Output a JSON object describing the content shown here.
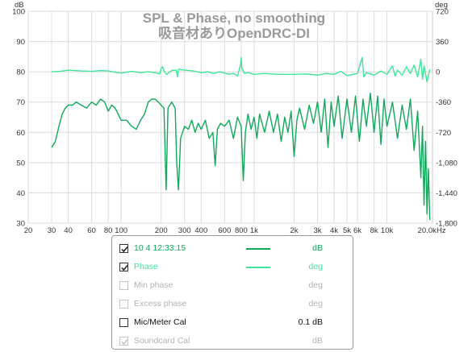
{
  "chart_data": {
    "type": "line",
    "title": "SPL & Phase, no smoothing",
    "subtitle": "吸音材ありOpenDRC-DI",
    "x_scale": "log",
    "xlim": [
      20,
      22000
    ],
    "x_ticks": [
      20,
      30,
      40,
      60,
      80,
      100,
      200,
      300,
      400,
      600,
      800,
      1000,
      2000,
      3000,
      4000,
      5000,
      6000,
      8000,
      10000,
      20000
    ],
    "x_tick_labels": [
      "20",
      "30",
      "40",
      "60",
      "80",
      "100",
      "200",
      "300",
      "400",
      "600",
      "800",
      "1k",
      "2k",
      "3k",
      "4k",
      "5k",
      "6k",
      "8k",
      "10k",
      "20.0k"
    ],
    "xlabel": "Hz",
    "ylabel_left": "dB",
    "ylim_left": [
      30,
      100
    ],
    "y_ticks_left": [
      30,
      40,
      50,
      60,
      70,
      80,
      90,
      100
    ],
    "ylabel_right": "deg",
    "ylim_right": [
      -1800,
      720
    ],
    "y_ticks_right": [
      720,
      360,
      0,
      -360,
      -720,
      -1080,
      -1440,
      -1800
    ],
    "y_tick_labels_right": [
      "720",
      "360",
      "0",
      "-360",
      "-720",
      "-1,080",
      "-1,440",
      "-1,800"
    ],
    "grid": true,
    "series": [
      {
        "name": "10 4 12:33:15",
        "axis": "left",
        "color": "#10a85a",
        "points": [
          [
            30,
            55
          ],
          [
            32,
            57
          ],
          [
            34,
            62
          ],
          [
            36,
            66
          ],
          [
            38,
            68
          ],
          [
            40,
            69
          ],
          [
            43,
            69
          ],
          [
            46,
            70
          ],
          [
            50,
            69
          ],
          [
            55,
            68
          ],
          [
            60,
            70
          ],
          [
            65,
            69
          ],
          [
            70,
            71
          ],
          [
            75,
            70
          ],
          [
            80,
            67
          ],
          [
            85,
            69
          ],
          [
            90,
            68
          ],
          [
            95,
            66
          ],
          [
            100,
            64
          ],
          [
            110,
            64
          ],
          [
            120,
            62
          ],
          [
            130,
            61
          ],
          [
            140,
            64
          ],
          [
            150,
            66
          ],
          [
            160,
            70
          ],
          [
            170,
            71
          ],
          [
            180,
            71
          ],
          [
            190,
            70
          ],
          [
            200,
            69
          ],
          [
            210,
            68
          ],
          [
            218,
            41
          ],
          [
            225,
            68
          ],
          [
            240,
            70
          ],
          [
            255,
            68
          ],
          [
            262,
            50
          ],
          [
            270,
            41
          ],
          [
            280,
            58
          ],
          [
            300,
            62
          ],
          [
            320,
            61
          ],
          [
            340,
            64
          ],
          [
            360,
            60
          ],
          [
            380,
            63
          ],
          [
            400,
            61
          ],
          [
            430,
            64
          ],
          [
            460,
            58
          ],
          [
            490,
            60
          ],
          [
            510,
            49
          ],
          [
            530,
            61
          ],
          [
            560,
            63
          ],
          [
            600,
            62
          ],
          [
            650,
            64
          ],
          [
            700,
            58
          ],
          [
            750,
            65
          ],
          [
            800,
            62
          ],
          [
            830,
            44
          ],
          [
            860,
            60
          ],
          [
            900,
            66
          ],
          [
            950,
            61
          ],
          [
            1000,
            65
          ],
          [
            1050,
            58
          ],
          [
            1100,
            66
          ],
          [
            1200,
            60
          ],
          [
            1300,
            67
          ],
          [
            1400,
            60
          ],
          [
            1500,
            66
          ],
          [
            1600,
            57
          ],
          [
            1700,
            65
          ],
          [
            1800,
            60
          ],
          [
            1900,
            67
          ],
          [
            2000,
            52
          ],
          [
            2100,
            64
          ],
          [
            2200,
            68
          ],
          [
            2400,
            61
          ],
          [
            2600,
            69
          ],
          [
            2800,
            63
          ],
          [
            3000,
            70
          ],
          [
            3200,
            60
          ],
          [
            3400,
            71
          ],
          [
            3600,
            55
          ],
          [
            3800,
            70
          ],
          [
            4000,
            62
          ],
          [
            4300,
            72
          ],
          [
            4600,
            58
          ],
          [
            5000,
            71
          ],
          [
            5400,
            60
          ],
          [
            5800,
            72
          ],
          [
            6200,
            57
          ],
          [
            6600,
            71
          ],
          [
            7000,
            62
          ],
          [
            7500,
            73
          ],
          [
            8000,
            60
          ],
          [
            8500,
            72
          ],
          [
            9000,
            56
          ],
          [
            9500,
            71
          ],
          [
            10000,
            62
          ],
          [
            11000,
            70
          ],
          [
            12000,
            58
          ],
          [
            13000,
            69
          ],
          [
            14000,
            61
          ],
          [
            15000,
            71
          ],
          [
            16000,
            54
          ],
          [
            17000,
            67
          ],
          [
            18000,
            45
          ],
          [
            18500,
            62
          ],
          [
            19000,
            36
          ],
          [
            19500,
            57
          ],
          [
            20000,
            33
          ],
          [
            20500,
            48
          ],
          [
            21000,
            31
          ]
        ]
      },
      {
        "name": "Phase",
        "axis": "right",
        "color": "#3ee59a",
        "points": [
          [
            30,
            0
          ],
          [
            35,
            5
          ],
          [
            40,
            20
          ],
          [
            50,
            10
          ],
          [
            60,
            5
          ],
          [
            70,
            15
          ],
          [
            80,
            10
          ],
          [
            90,
            -5
          ],
          [
            100,
            -15
          ],
          [
            120,
            5
          ],
          [
            140,
            -10
          ],
          [
            160,
            0
          ],
          [
            180,
            -10
          ],
          [
            195,
            -25
          ],
          [
            200,
            40
          ],
          [
            205,
            60
          ],
          [
            210,
            10
          ],
          [
            220,
            -30
          ],
          [
            240,
            15
          ],
          [
            260,
            20
          ],
          [
            265,
            -60
          ],
          [
            270,
            30
          ],
          [
            300,
            20
          ],
          [
            350,
            10
          ],
          [
            400,
            -10
          ],
          [
            450,
            0
          ],
          [
            500,
            -20
          ],
          [
            550,
            0
          ],
          [
            600,
            -15
          ],
          [
            650,
            -30
          ],
          [
            700,
            -20
          ],
          [
            750,
            -50
          ],
          [
            790,
            80
          ],
          [
            800,
            170
          ],
          [
            810,
            40
          ],
          [
            850,
            -20
          ],
          [
            900,
            -10
          ],
          [
            1000,
            -30
          ],
          [
            1200,
            -20
          ],
          [
            1500,
            -30
          ],
          [
            2000,
            -30
          ],
          [
            2500,
            -25
          ],
          [
            3000,
            -40
          ],
          [
            3500,
            -20
          ],
          [
            4000,
            -30
          ],
          [
            4500,
            5
          ],
          [
            5000,
            -45
          ],
          [
            6000,
            -20
          ],
          [
            6500,
            170
          ],
          [
            6700,
            -60
          ],
          [
            7000,
            -10
          ],
          [
            8000,
            -40
          ],
          [
            9000,
            10
          ],
          [
            10000,
            -30
          ],
          [
            11000,
            70
          ],
          [
            11500,
            -50
          ],
          [
            12000,
            20
          ],
          [
            13000,
            -40
          ],
          [
            14000,
            60
          ],
          [
            15000,
            -20
          ],
          [
            16000,
            80
          ],
          [
            17000,
            -60
          ],
          [
            18000,
            150
          ],
          [
            18500,
            -90
          ],
          [
            19000,
            70
          ],
          [
            20000,
            -120
          ],
          [
            21000,
            30
          ]
        ]
      }
    ]
  },
  "legend": {
    "rows": [
      {
        "label": "10 4 12:33:15",
        "unit": "dB",
        "checked": true,
        "enabled": true,
        "label_color": "#10a85a",
        "unit_color": "#10a85a",
        "swatch": "#10a85a"
      },
      {
        "label": "Phase",
        "unit": "deg",
        "checked": true,
        "enabled": true,
        "label_color": "#3ee59a",
        "unit_color": "#3ee59a",
        "swatch": "#3ee59a"
      },
      {
        "label": "Min phase",
        "unit": "deg",
        "checked": false,
        "enabled": false,
        "label_color": "#b3b3b3",
        "unit_color": "#b3b3b3",
        "swatch": ""
      },
      {
        "label": "Excess phase",
        "unit": "deg",
        "checked": false,
        "enabled": false,
        "label_color": "#b3b3b3",
        "unit_color": "#b3b3b3",
        "swatch": ""
      },
      {
        "label": "Mic/Meter Cal",
        "unit": "0.1 dB",
        "checked": false,
        "enabled": true,
        "label_color": "#111111",
        "unit_color": "#111111",
        "swatch": ""
      },
      {
        "label": "Soundcard Cal",
        "unit": "dB",
        "checked": true,
        "enabled": false,
        "label_color": "#b3b3b3",
        "unit_color": "#b3b3b3",
        "swatch": ""
      }
    ]
  }
}
